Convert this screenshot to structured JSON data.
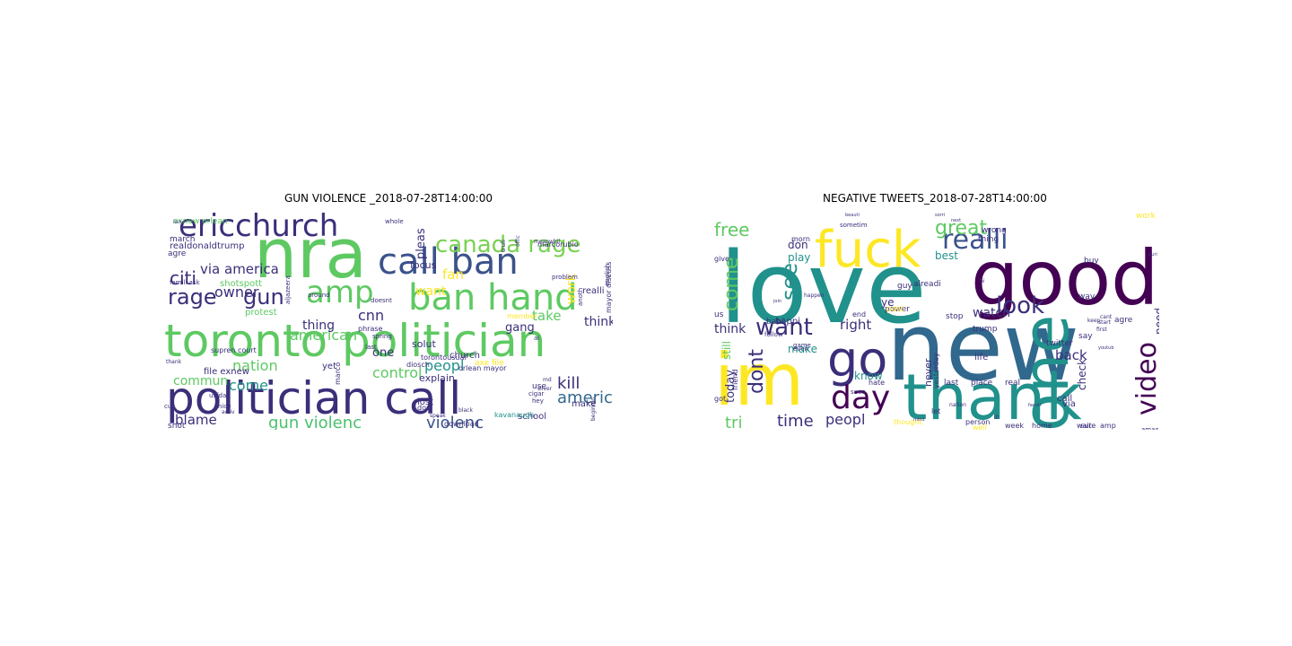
{
  "panels": [
    {
      "title": "GUN VIOLENCE _2018-07-28T14:00:00",
      "words": [
        {
          "t": "nra",
          "s": 76,
          "c": "#5ec962"
        },
        {
          "t": "toronto politician",
          "s": 50,
          "c": "#5ec962"
        },
        {
          "t": "politician call",
          "s": 50,
          "c": "#3b2f7a"
        },
        {
          "t": "ban hand",
          "s": 40,
          "c": "#5ec962"
        },
        {
          "t": "call ban",
          "s": 40,
          "c": "#3b528b"
        },
        {
          "t": "ericchurch",
          "s": 34,
          "c": "#3b2f7a"
        },
        {
          "t": "amp",
          "s": 34,
          "c": "#5ec962"
        },
        {
          "t": "canada rage",
          "s": 26,
          "c": "#7ad151"
        },
        {
          "t": "rage",
          "s": 24,
          "c": "#3b2f7a"
        },
        {
          "t": "gun",
          "s": 24,
          "c": "#3b2f7a"
        },
        {
          "t": "citi",
          "s": 20,
          "c": "#3b2f7a"
        },
        {
          "t": "gun violenc",
          "s": 18,
          "c": "#4ac16d"
        },
        {
          "t": "violenc",
          "s": 18,
          "c": "#3b528b"
        },
        {
          "t": "america",
          "s": 18,
          "c": "#31688e"
        },
        {
          "t": "kill",
          "s": 18,
          "c": "#3b2f7a"
        },
        {
          "t": "peopl",
          "s": 16,
          "c": "#21918c"
        },
        {
          "t": "control",
          "s": 16,
          "c": "#5ec962"
        },
        {
          "t": "nation",
          "s": 16,
          "c": "#5ec962"
        },
        {
          "t": "american",
          "s": 16,
          "c": "#5ec962"
        },
        {
          "t": "cnn",
          "s": 16,
          "c": "#3b2f7a"
        },
        {
          "t": "come",
          "s": 16,
          "c": "#21918c"
        },
        {
          "t": "via america",
          "s": 15,
          "c": "#3b2f7a"
        },
        {
          "t": "owner",
          "s": 16,
          "c": "#3b2f7a"
        },
        {
          "t": "take",
          "s": 15,
          "c": "#5ec962"
        },
        {
          "t": "fan",
          "s": 15,
          "c": "#fde725"
        },
        {
          "t": "commun",
          "s": 14,
          "c": "#5ec962"
        },
        {
          "t": "blame",
          "s": 15,
          "c": "#3b2f7a"
        },
        {
          "t": "thing",
          "s": 14,
          "c": "#3b2f7a"
        },
        {
          "t": "think",
          "s": 14,
          "c": "#3b2f7a"
        },
        {
          "t": "gang",
          "s": 13,
          "c": "#3b2f7a"
        },
        {
          "t": "work",
          "s": 14,
          "c": "#fde725"
        },
        {
          "t": "want",
          "s": 14,
          "c": "#fde725"
        },
        {
          "t": "pleas",
          "s": 13,
          "c": "#3b2f7a"
        },
        {
          "t": "one",
          "s": 13,
          "c": "#3b2f7a"
        },
        {
          "t": "solut",
          "s": 11,
          "c": "#3b2f7a"
        },
        {
          "t": "explain",
          "s": 11,
          "c": "#3b2f7a"
        },
        {
          "t": "focus",
          "s": 11,
          "c": "#3b2f7a"
        },
        {
          "t": "realdonaldtrump",
          "s": 10,
          "c": "#3b2f7a"
        },
        {
          "t": "shotspott",
          "s": 10,
          "c": "#5ec962"
        },
        {
          "t": "marcorubio",
          "s": 8,
          "c": "#3b2f7a"
        },
        {
          "t": "file exnew",
          "s": 10,
          "c": "#3b2f7a"
        },
        {
          "t": "school",
          "s": 10,
          "c": "#3b2f7a"
        },
        {
          "t": "church",
          "s": 10,
          "c": "#3b2f7a"
        },
        {
          "t": "protest",
          "s": 10,
          "c": "#5ec962"
        },
        {
          "t": "lost",
          "s": 10,
          "c": "#3b2f7a"
        },
        {
          "t": "make",
          "s": 10,
          "c": "#3b2f7a"
        },
        {
          "t": "realli",
          "s": 10,
          "c": "#3b2f7a"
        },
        {
          "t": "march",
          "s": 9,
          "c": "#3b2f7a"
        },
        {
          "t": "agre",
          "s": 9,
          "c": "#3b2f7a"
        },
        {
          "t": "shot",
          "s": 9,
          "c": "#3b2f7a"
        },
        {
          "t": "kavanaugh",
          "s": 8,
          "c": "#21918c"
        },
        {
          "t": "download",
          "s": 8,
          "c": "#3b2f7a"
        },
        {
          "t": "torontousual",
          "s": 8,
          "c": "#3b2f7a"
        },
        {
          "t": "member",
          "s": 8,
          "c": "#fde725"
        },
        {
          "t": "orlean mayor",
          "s": 8,
          "c": "#3b2f7a"
        },
        {
          "t": "diosch",
          "s": 8,
          "c": "#3b2f7a"
        },
        {
          "t": "supren court",
          "s": 8,
          "c": "#3b2f7a"
        },
        {
          "t": "phrase",
          "s": 8,
          "c": "#3b2f7a"
        },
        {
          "t": "mayor discuss",
          "s": 8,
          "c": "#3b2f7a"
        },
        {
          "t": "english",
          "s": 7,
          "c": "#3b2f7a"
        },
        {
          "t": "aljazeera",
          "s": 7,
          "c": "#3b2f7a"
        },
        {
          "t": "yet",
          "s": 10,
          "c": "#3b2f7a"
        },
        {
          "t": "use",
          "s": 9,
          "c": "#3b2f7a"
        },
        {
          "t": "hey",
          "s": 7,
          "c": "#3b2f7a"
        },
        {
          "t": "don",
          "s": 8,
          "c": "#3b2f7a"
        },
        {
          "t": "marco",
          "s": 8,
          "c": "#3b2f7a"
        },
        {
          "t": "spring",
          "s": 7,
          "c": "#3b2f7a"
        },
        {
          "t": "last",
          "s": 7,
          "c": "#3b2f7a"
        },
        {
          "t": "doesnt",
          "s": 7,
          "c": "#3b2f7a"
        },
        {
          "t": "around",
          "s": 7,
          "c": "#3b2f7a"
        },
        {
          "t": "anoth",
          "s": 7,
          "c": "#3b2f7a"
        },
        {
          "t": "whole",
          "s": 7,
          "c": "#3b2f7a"
        },
        {
          "t": "famili ask",
          "s": 7,
          "c": "#3b2f7a"
        },
        {
          "t": "usfda",
          "s": 7,
          "c": "#3b2f7a"
        },
        {
          "t": "cut",
          "s": 7,
          "c": "#3b2f7a"
        },
        {
          "t": "nice",
          "s": 7,
          "c": "#3b2f7a"
        },
        {
          "t": "activ",
          "s": 6,
          "c": "#3b2f7a"
        },
        {
          "t": "speak",
          "s": 6,
          "c": "#3b2f7a"
        },
        {
          "t": "black",
          "s": 6,
          "c": "#3b2f7a"
        },
        {
          "t": "beginnin",
          "s": 6,
          "c": "#3b2f7a"
        },
        {
          "t": "meanwhil",
          "s": 6,
          "c": "#3b2f7a"
        },
        {
          "t": "offic",
          "s": 6,
          "c": "#3b2f7a"
        },
        {
          "t": "cigar",
          "s": 7,
          "c": "#3b2f7a"
        },
        {
          "t": "silver",
          "s": 6,
          "c": "#3b2f7a"
        },
        {
          "t": "thank",
          "s": 6,
          "c": "#3b2f7a"
        },
        {
          "t": "ai",
          "s": 7,
          "c": "#3b2f7a"
        },
        {
          "t": "md",
          "s": 6,
          "c": "#3b2f7a"
        },
        {
          "t": "problem",
          "s": 7,
          "c": "#3b2f7a"
        },
        {
          "t": "truli",
          "s": 7,
          "c": "#3b2f7a"
        },
        {
          "t": "axe file",
          "s": 9,
          "c": "#fde725"
        },
        {
          "t": "exnew orlean",
          "s": 9,
          "c": "#5ec962"
        },
        {
          "t": "ian",
          "s": 6,
          "c": "#3b2f7a"
        }
      ]
    },
    {
      "title": "NEGATIVE TWEETS_2018-07-28T14:00:00",
      "words": [
        {
          "t": "love",
          "s": 110,
          "c": "#21918c"
        },
        {
          "t": "new",
          "s": 104,
          "c": "#31688e"
        },
        {
          "t": "good",
          "s": 84,
          "c": "#440154"
        },
        {
          "t": "thank",
          "s": 70,
          "c": "#21918c"
        },
        {
          "t": "im",
          "s": 80,
          "c": "#fde725"
        },
        {
          "t": "one",
          "s": 70,
          "c": "#21918c"
        },
        {
          "t": "fuck",
          "s": 56,
          "c": "#fde725"
        },
        {
          "t": "go",
          "s": 54,
          "c": "#3b2f7a"
        },
        {
          "t": "day",
          "s": 36,
          "c": "#440154"
        },
        {
          "t": "video",
          "s": 30,
          "c": "#440154"
        },
        {
          "t": "realli",
          "s": 30,
          "c": "#3b528b"
        },
        {
          "t": "look",
          "s": 26,
          "c": "#3b2f7a"
        },
        {
          "t": "want",
          "s": 26,
          "c": "#3b2f7a"
        },
        {
          "t": "great",
          "s": 22,
          "c": "#5ec962"
        },
        {
          "t": "see",
          "s": 24,
          "c": "#21918c"
        },
        {
          "t": "come",
          "s": 22,
          "c": "#5ec962"
        },
        {
          "t": "free",
          "s": 20,
          "c": "#5ec962"
        },
        {
          "t": "dont",
          "s": 22,
          "c": "#3b2f7a"
        },
        {
          "t": "time",
          "s": 18,
          "c": "#3b2f7a"
        },
        {
          "t": "tri",
          "s": 18,
          "c": "#5ec962"
        },
        {
          "t": "peopl",
          "s": 16,
          "c": "#3b2f7a"
        },
        {
          "t": "right",
          "s": 15,
          "c": "#3b2f7a"
        },
        {
          "t": "back",
          "s": 15,
          "c": "#3b2f7a"
        },
        {
          "t": "watch",
          "s": 14,
          "c": "#3b2f7a"
        },
        {
          "t": "think",
          "s": 14,
          "c": "#3b2f7a"
        },
        {
          "t": "today",
          "s": 13,
          "c": "#3b2f7a"
        },
        {
          "t": "make",
          "s": 12,
          "c": "#21918c"
        },
        {
          "t": "know",
          "s": 12,
          "c": "#21918c"
        },
        {
          "t": "play",
          "s": 12,
          "c": "#21918c"
        },
        {
          "t": "best",
          "s": 12,
          "c": "#21918c"
        },
        {
          "t": "need",
          "s": 12,
          "c": "#3b2f7a"
        },
        {
          "t": "check",
          "s": 12,
          "c": "#3b2f7a"
        },
        {
          "t": "never",
          "s": 11,
          "c": "#3b2f7a"
        },
        {
          "t": "still",
          "s": 12,
          "c": "#5ec962"
        },
        {
          "t": "don",
          "s": 12,
          "c": "#3b2f7a"
        },
        {
          "t": "ye",
          "s": 12,
          "c": "#3b2f7a"
        },
        {
          "t": "happi",
          "s": 10,
          "c": "#3b2f7a"
        },
        {
          "t": "call",
          "s": 10,
          "c": "#3b2f7a"
        },
        {
          "t": "via",
          "s": 10,
          "c": "#3b2f7a"
        },
        {
          "t": "babi",
          "s": 9,
          "c": "#3b2f7a"
        },
        {
          "t": "life",
          "s": 10,
          "c": "#3b2f7a"
        },
        {
          "t": "last",
          "s": 9,
          "c": "#3b2f7a"
        },
        {
          "t": "place",
          "s": 9,
          "c": "#3b2f7a"
        },
        {
          "t": "real",
          "s": 9,
          "c": "#3b2f7a"
        },
        {
          "t": "twitter",
          "s": 9,
          "c": "#3b2f7a"
        },
        {
          "t": "power",
          "s": 9,
          "c": "#3b2f7a"
        },
        {
          "t": "trump",
          "s": 9,
          "c": "#3b2f7a"
        },
        {
          "t": "post",
          "s": 9,
          "c": "#fde725"
        },
        {
          "t": "wrong",
          "s": 9,
          "c": "#3b2f7a"
        },
        {
          "t": "thing",
          "s": 9,
          "c": "#3b2f7a"
        },
        {
          "t": "stop",
          "s": 9,
          "c": "#3b2f7a"
        },
        {
          "t": "guy",
          "s": 9,
          "c": "#3b2f7a"
        },
        {
          "t": "alreadi",
          "s": 9,
          "c": "#3b2f7a"
        },
        {
          "t": "say",
          "s": 9,
          "c": "#3b2f7a"
        },
        {
          "t": "way",
          "s": 9,
          "c": "#3b2f7a"
        },
        {
          "t": "work",
          "s": 9,
          "c": "#fde725"
        },
        {
          "t": "buy",
          "s": 9,
          "c": "#3b2f7a"
        },
        {
          "t": "agre",
          "s": 9,
          "c": "#3b2f7a"
        },
        {
          "t": "amp",
          "s": 8,
          "c": "#3b2f7a"
        },
        {
          "t": "sure",
          "s": 8,
          "c": "#3b2f7a"
        },
        {
          "t": "wait",
          "s": 8,
          "c": "#3b2f7a"
        },
        {
          "t": "home",
          "s": 8,
          "c": "#3b2f7a"
        },
        {
          "t": "week",
          "s": 8,
          "c": "#3b2f7a"
        },
        {
          "t": "well",
          "s": 8,
          "c": "#fde725"
        },
        {
          "t": "person",
          "s": 8,
          "c": "#3b2f7a"
        },
        {
          "t": "thought",
          "s": 8,
          "c": "#fde725"
        },
        {
          "t": "let",
          "s": 8,
          "c": "#3b2f7a"
        },
        {
          "t": "yesterday",
          "s": 8,
          "c": "#3b2f7a"
        },
        {
          "t": "hate",
          "s": 8,
          "c": "#3b2f7a"
        },
        {
          "t": "seen",
          "s": 7,
          "c": "#3b2f7a"
        },
        {
          "t": "end",
          "s": 8,
          "c": "#3b2f7a"
        },
        {
          "t": "us",
          "s": 9,
          "c": "#3b2f7a"
        },
        {
          "t": "got",
          "s": 8,
          "c": "#3b2f7a"
        },
        {
          "t": "friend",
          "s": 8,
          "c": "#3b2f7a"
        },
        {
          "t": "give",
          "s": 8,
          "c": "#3b2f7a"
        },
        {
          "t": "morn",
          "s": 8,
          "c": "#3b2f7a"
        },
        {
          "t": "follow",
          "s": 7,
          "c": "#3b2f7a"
        },
        {
          "t": "game",
          "s": 7,
          "c": "#3b2f7a"
        },
        {
          "t": "even",
          "s": 7,
          "c": "#3b2f7a"
        },
        {
          "t": "sometim",
          "s": 7,
          "c": "#3b2f7a"
        },
        {
          "t": "happen",
          "s": 6,
          "c": "#3b2f7a"
        },
        {
          "t": "amaz",
          "s": 7,
          "c": "#3b2f7a"
        },
        {
          "t": "first",
          "s": 6,
          "c": "#3b2f7a"
        },
        {
          "t": "start",
          "s": 6,
          "c": "#3b2f7a"
        },
        {
          "t": "nation",
          "s": 6,
          "c": "#3b2f7a"
        },
        {
          "t": "keep",
          "s": 6,
          "c": "#3b2f7a"
        },
        {
          "t": "hi",
          "s": 6,
          "c": "#3b2f7a"
        },
        {
          "t": "cant",
          "s": 6,
          "c": "#3b2f7a"
        },
        {
          "t": "ill",
          "s": 6,
          "c": "#3b2f7a"
        },
        {
          "t": "mind",
          "s": 5,
          "c": "#3b2f7a"
        },
        {
          "t": "famili",
          "s": 5,
          "c": "#3b2f7a"
        },
        {
          "t": "youtub",
          "s": 5,
          "c": "#3b2f7a"
        },
        {
          "t": "guri",
          "s": 5,
          "c": "#3b2f7a"
        },
        {
          "t": "join",
          "s": 5,
          "c": "#3b2f7a"
        },
        {
          "t": "sorri",
          "s": 5,
          "c": "#3b2f7a"
        },
        {
          "t": "next",
          "s": 5,
          "c": "#3b2f7a"
        },
        {
          "t": "beauti",
          "s": 5,
          "c": "#3b2f7a"
        }
      ]
    }
  ]
}
